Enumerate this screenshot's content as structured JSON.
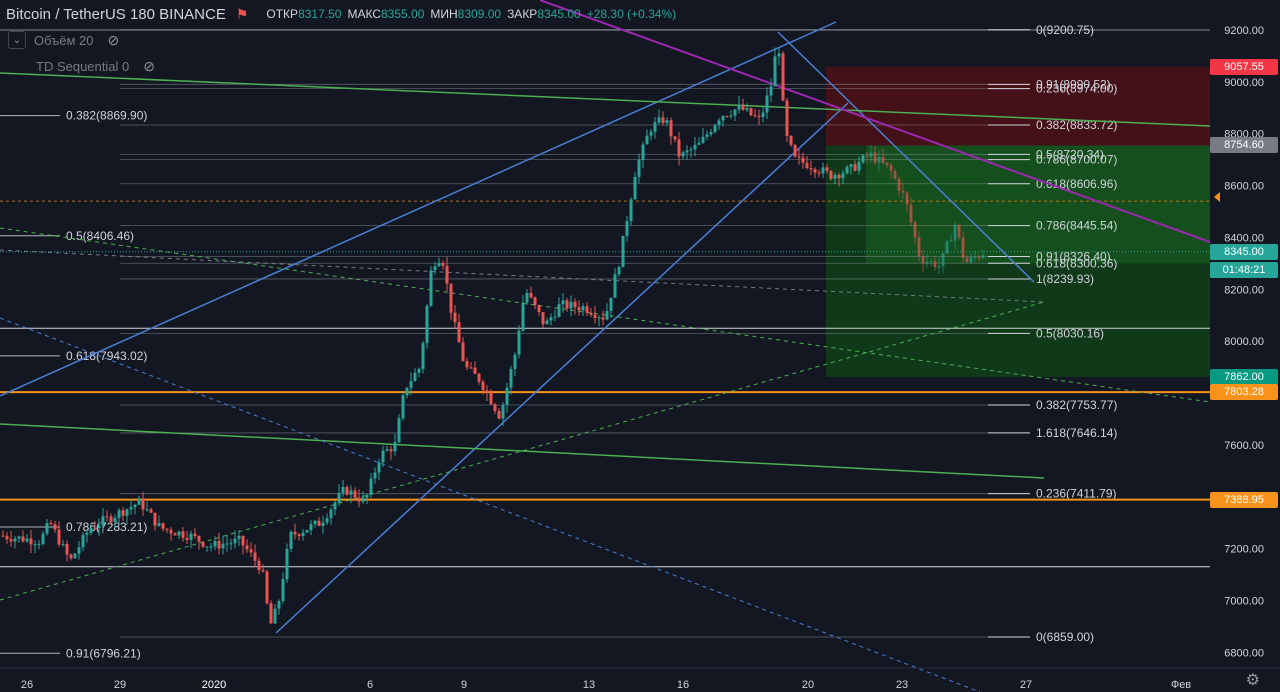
{
  "header": {
    "symbol": "Bitcoin / TetherUS  180  BINANCE",
    "open_label": "ОТКР",
    "open_value": "8317.50",
    "high_label": "МАКС",
    "high_value": "8355.00",
    "low_label": "МИН",
    "low_value": "8309.00",
    "close_label": "ЗАКР",
    "close_value": "8345.00",
    "change": "+28.30 (+0.34%)"
  },
  "indicators": [
    {
      "name": "Объём 20"
    },
    {
      "name": "TD Sequential 0"
    }
  ],
  "price_labels": [
    {
      "price": 9057.55,
      "text": "9057.55",
      "color": "#f23645"
    },
    {
      "price": 8754.6,
      "text": "8754.60",
      "color": "#787b86"
    },
    {
      "price": 8345.0,
      "text": "8345.00",
      "color": "#26a69a"
    },
    {
      "price": 7862.0,
      "text": "7862.00",
      "color": "#089981"
    },
    {
      "price": 7803.28,
      "text": "7803.28",
      "color": "#f7931a"
    },
    {
      "price": 7388.95,
      "text": "7388.95",
      "color": "#f7931a"
    }
  ],
  "countdown": "01:48:21",
  "chart_data": {
    "type": "candlestick",
    "y_axis": {
      "min": 6760,
      "max": 9280,
      "ticks": [
        6800,
        7000,
        7200,
        7400,
        7600,
        7800,
        8000,
        8200,
        8400,
        8600,
        8800,
        9000,
        9200
      ]
    },
    "x_axis": {
      "labels": [
        {
          "text": "26",
          "x": 27
        },
        {
          "text": "29",
          "x": 120
        },
        {
          "text": "2020",
          "x": 214
        },
        {
          "text": "6",
          "x": 370
        },
        {
          "text": "9",
          "x": 464
        },
        {
          "text": "13",
          "x": 589
        },
        {
          "text": "16",
          "x": 683
        },
        {
          "text": "20",
          "x": 808
        },
        {
          "text": "23",
          "x": 902
        },
        {
          "text": "27",
          "x": 1026
        },
        {
          "text": "Фев",
          "x": 1181
        }
      ]
    },
    "fib_levels": [
      {
        "text": "0.382(8869.90)",
        "price": 8869.9,
        "side": "left"
      },
      {
        "text": "0.5(8406.46)",
        "price": 8406.46,
        "side": "left"
      },
      {
        "text": "0.618(7943.02)",
        "price": 7943.02,
        "side": "left"
      },
      {
        "text": "0.786(7283.21)",
        "price": 7283.21,
        "side": "left"
      },
      {
        "text": "0.91(6796.21)",
        "price": 6796.21,
        "side": "left"
      },
      {
        "text": "0(9200.75)",
        "price": 9200.75,
        "side": "right"
      },
      {
        "text": "0.91(8990.52)",
        "price": 8990.52,
        "side": "right"
      },
      {
        "text": "0.236(8974.00)",
        "price": 8974.0,
        "side": "right"
      },
      {
        "text": "0.382(8833.72)",
        "price": 8833.72,
        "side": "right"
      },
      {
        "text": "0.5(8720.34)",
        "price": 8720.34,
        "side": "right"
      },
      {
        "text": "0.786(8700.07)",
        "price": 8700.07,
        "side": "right"
      },
      {
        "text": "0.618(8606.96)",
        "price": 8606.96,
        "side": "right"
      },
      {
        "text": "0.786(8445.54)",
        "price": 8445.54,
        "side": "right"
      },
      {
        "text": "0.91(8326.40)",
        "price": 8326.4,
        "side": "right"
      },
      {
        "text": "0.618(8300.36)",
        "price": 8300.36,
        "side": "right"
      },
      {
        "text": "1(8239.93)",
        "price": 8239.93,
        "side": "right"
      },
      {
        "text": "0.5(8030.16)",
        "price": 8030.16,
        "side": "right"
      },
      {
        "text": "0.382(7753.77)",
        "price": 7753.77,
        "side": "right"
      },
      {
        "text": "1.618(7646.14)",
        "price": 7646.14,
        "side": "right"
      },
      {
        "text": "0.236(7411.79)",
        "price": 7411.79,
        "side": "right"
      },
      {
        "text": "0(6859.00)",
        "price": 6859.0,
        "side": "right"
      }
    ],
    "price_path": [
      [
        0,
        7250
      ],
      [
        40,
        7230
      ],
      [
        50,
        7300
      ],
      [
        70,
        7150
      ],
      [
        90,
        7280
      ],
      [
        110,
        7320
      ],
      [
        140,
        7380
      ],
      [
        160,
        7280
      ],
      [
        190,
        7250
      ],
      [
        210,
        7210
      ],
      [
        240,
        7230
      ],
      [
        262,
        7120
      ],
      [
        270,
        6900
      ],
      [
        278,
        6980
      ],
      [
        290,
        7250
      ],
      [
        320,
        7300
      ],
      [
        345,
        7430
      ],
      [
        365,
        7380
      ],
      [
        380,
        7560
      ],
      [
        395,
        7600
      ],
      [
        405,
        7820
      ],
      [
        420,
        7900
      ],
      [
        432,
        8300
      ],
      [
        442,
        8330
      ],
      [
        452,
        8100
      ],
      [
        465,
        7900
      ],
      [
        480,
        7850
      ],
      [
        500,
        7710
      ],
      [
        515,
        7950
      ],
      [
        525,
        8200
      ],
      [
        545,
        8060
      ],
      [
        560,
        8140
      ],
      [
        585,
        8130
      ],
      [
        605,
        8090
      ],
      [
        620,
        8320
      ],
      [
        635,
        8650
      ],
      [
        650,
        8820
      ],
      [
        665,
        8860
      ],
      [
        680,
        8710
      ],
      [
        700,
        8760
      ],
      [
        720,
        8870
      ],
      [
        740,
        8900
      ],
      [
        760,
        8850
      ],
      [
        772,
        9000
      ],
      [
        778,
        9180
      ],
      [
        785,
        8800
      ],
      [
        795,
        8700
      ],
      [
        810,
        8680
      ],
      [
        830,
        8640
      ],
      [
        850,
        8660
      ],
      [
        870,
        8720
      ],
      [
        890,
        8660
      ],
      [
        905,
        8550
      ],
      [
        920,
        8320
      ],
      [
        940,
        8290
      ],
      [
        955,
        8450
      ],
      [
        965,
        8300
      ],
      [
        985,
        8345
      ]
    ]
  }
}
